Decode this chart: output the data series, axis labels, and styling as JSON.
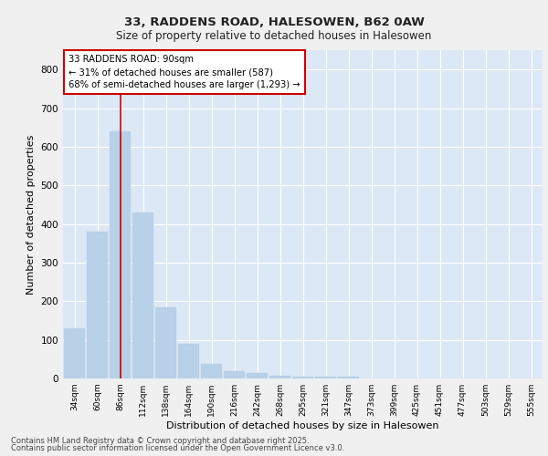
{
  "title1": "33, RADDENS ROAD, HALESOWEN, B62 0AW",
  "title2": "Size of property relative to detached houses in Halesowen",
  "xlabel": "Distribution of detached houses by size in Halesowen",
  "ylabel": "Number of detached properties",
  "bar_color": "#b8d0e8",
  "bar_edge_color": "#b8d0e8",
  "background_color": "#dce8f5",
  "grid_color": "#ffffff",
  "categories": [
    "34sqm",
    "60sqm",
    "86sqm",
    "112sqm",
    "138sqm",
    "164sqm",
    "190sqm",
    "216sqm",
    "242sqm",
    "268sqm",
    "295sqm",
    "321sqm",
    "347sqm",
    "373sqm",
    "399sqm",
    "425sqm",
    "451sqm",
    "477sqm",
    "503sqm",
    "529sqm",
    "555sqm"
  ],
  "values": [
    130,
    380,
    640,
    430,
    185,
    90,
    38,
    18,
    13,
    8,
    5,
    5,
    5,
    0,
    0,
    0,
    0,
    0,
    0,
    0,
    0
  ],
  "ylim": [
    0,
    850
  ],
  "yticks": [
    0,
    100,
    200,
    300,
    400,
    500,
    600,
    700,
    800
  ],
  "red_line_x": 2,
  "annotation_text": "33 RADDENS ROAD: 90sqm\n← 31% of detached houses are smaller (587)\n68% of semi-detached houses are larger (1,293) →",
  "annotation_box_color": "#ffffff",
  "annotation_box_edge": "#cc0000",
  "red_line_color": "#cc0000",
  "footer1": "Contains HM Land Registry data © Crown copyright and database right 2025.",
  "footer2": "Contains public sector information licensed under the Open Government Licence v3.0."
}
